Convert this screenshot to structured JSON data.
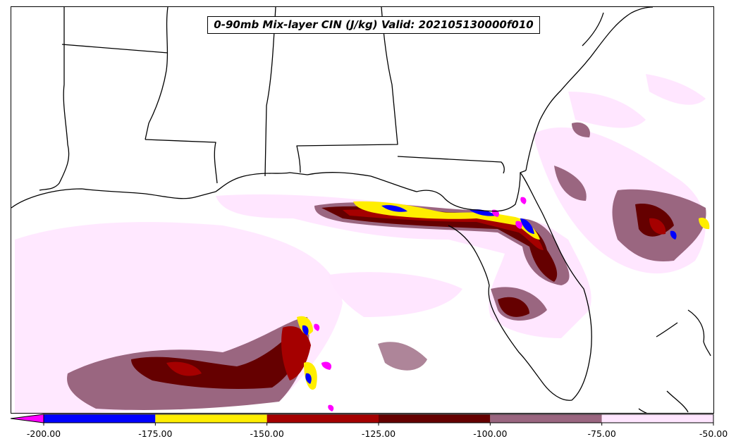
{
  "title": "0-90mb Mix-layer CIN (J/kg) Valid: 202105130000f010",
  "colorbar": {
    "extend": "min",
    "under_color": "#ff00ff",
    "bins": [
      {
        "from": -200,
        "to": -175,
        "color": "#0000ff"
      },
      {
        "from": -175,
        "to": -150,
        "color": "#ffee00"
      },
      {
        "from": -150,
        "to": -125,
        "color": "#a50000"
      },
      {
        "from": -125,
        "to": -100,
        "color": "#650000"
      },
      {
        "from": -100,
        "to": -75,
        "color": "#9a6680"
      },
      {
        "from": -75,
        "to": -50,
        "color": "#ffe6ff"
      }
    ],
    "tick_labels": [
      "-200.00",
      "-175.00",
      "-150.00",
      "-125.00",
      "-100.00",
      "-75.00",
      "-50.00"
    ]
  },
  "map": {
    "region": "Southeastern United States and Gulf of Mexico",
    "line_color": "#000000"
  }
}
